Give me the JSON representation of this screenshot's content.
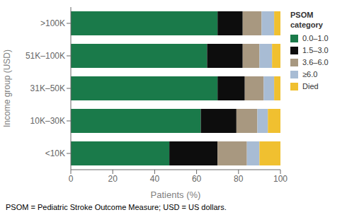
{
  "chart_data": {
    "type": "bar",
    "orientation": "horizontal",
    "stacked": true,
    "categories": [
      "<10K",
      "10K–30K",
      "31K–50K",
      "51K–100K",
      ">100K"
    ],
    "series": [
      {
        "name": "0.0–1.0",
        "color": "#1a7a4a",
        "values": [
          47,
          62,
          70,
          65,
          70
        ]
      },
      {
        "name": "1.5–3.0",
        "color": "#0d0d0d",
        "values": [
          23,
          17,
          13,
          17,
          12
        ]
      },
      {
        "name": "3.6–6.0",
        "color": "#a89880",
        "values": [
          14,
          10,
          9,
          8,
          9
        ]
      },
      {
        "name": "≥6.0",
        "color": "#a8bcd4",
        "values": [
          6,
          5,
          5,
          6,
          6
        ]
      },
      {
        "name": "Died",
        "color": "#f0c030",
        "values": [
          10,
          6,
          3,
          4,
          3
        ]
      }
    ],
    "xlabel": "Patients (%)",
    "ylabel": "Income group (USD)",
    "xlim": [
      0,
      100
    ],
    "xticks": [
      0,
      20,
      40,
      60,
      80,
      100
    ],
    "grid": false,
    "legend": "right",
    "legend_title": "PSOM\ncategory",
    "annotations": [
      "PSOM = Pediatric Stroke Outcome Measure; USD = US dollars."
    ]
  }
}
